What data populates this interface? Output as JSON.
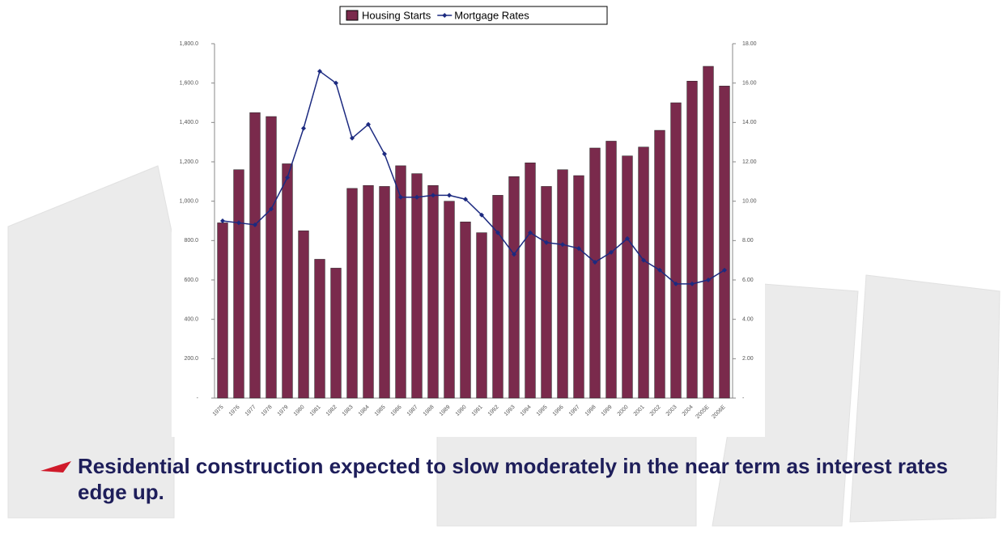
{
  "chart_data": {
    "type": "bar",
    "categories": [
      "1975",
      "1976",
      "1977",
      "1978",
      "1979",
      "1980",
      "1981",
      "1982",
      "1983",
      "1984",
      "1985",
      "1986",
      "1987",
      "1988",
      "1989",
      "1990",
      "1991",
      "1992",
      "1993",
      "1994",
      "1995",
      "1996",
      "1997",
      "1998",
      "1999",
      "2000",
      "2001",
      "2002",
      "2003",
      "2004",
      "2005E",
      "2006E"
    ],
    "series": [
      {
        "name": "Housing Starts",
        "type": "bar",
        "color": "#7a2a4c",
        "values": [
          890,
          1160,
          1450,
          1430,
          1190,
          850,
          705,
          660,
          1065,
          1080,
          1075,
          1180,
          1140,
          1080,
          1000,
          895,
          840,
          1030,
          1125,
          1195,
          1075,
          1160,
          1130,
          1270,
          1305,
          1230,
          1275,
          1360,
          1500,
          1610,
          1685,
          1585
        ]
      },
      {
        "name": "Mortgage Rates",
        "type": "line",
        "axis": "y2",
        "color": "#1c2a80",
        "values": [
          9.0,
          8.9,
          8.8,
          9.6,
          11.2,
          13.7,
          16.6,
          16.0,
          13.2,
          13.9,
          12.4,
          10.2,
          10.2,
          10.3,
          10.3,
          10.1,
          9.3,
          8.4,
          7.3,
          8.4,
          7.9,
          7.8,
          7.6,
          6.9,
          7.4,
          8.1,
          7.0,
          6.5,
          5.8,
          5.8,
          6.0,
          6.5
        ]
      }
    ],
    "ylim": [
      0,
      1800
    ],
    "yticks": [
      {
        "value": 0,
        "label": "-"
      },
      {
        "value": 200,
        "label": "200.0"
      },
      {
        "value": 400,
        "label": "400.0"
      },
      {
        "value": 600,
        "label": "600.0"
      },
      {
        "value": 800,
        "label": "800.0"
      },
      {
        "value": 1000,
        "label": "1,000.0"
      },
      {
        "value": 1200,
        "label": "1,200.0"
      },
      {
        "value": 1400,
        "label": "1,400.0"
      },
      {
        "value": 1600,
        "label": "1,600.0"
      },
      {
        "value": 1800,
        "label": "1,800.0"
      }
    ],
    "y2lim": [
      0,
      18
    ],
    "y2ticks": [
      {
        "value": 0,
        "label": "-"
      },
      {
        "value": 2,
        "label": "2.00"
      },
      {
        "value": 4,
        "label": "4.00"
      },
      {
        "value": 6,
        "label": "6.00"
      },
      {
        "value": 8,
        "label": "8.00"
      },
      {
        "value": 10,
        "label": "10.00"
      },
      {
        "value": 12,
        "label": "12.00"
      },
      {
        "value": 14,
        "label": "14.00"
      },
      {
        "value": 16,
        "label": "16.00"
      },
      {
        "value": 18,
        "label": "18.00"
      }
    ],
    "legend": "top"
  },
  "bullet": "Residential construction expected to slow moderately in the near term as interest rates edge up."
}
